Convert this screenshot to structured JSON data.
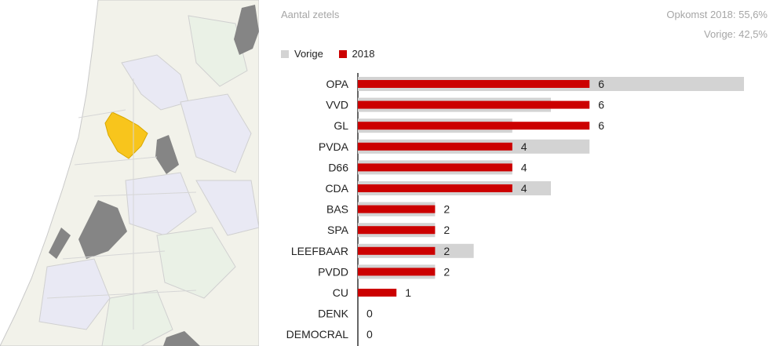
{
  "header": {
    "title": "Aantal zetels",
    "turnout_2018": "Opkomst 2018: 55,6%",
    "turnout_previous": "Vorige: 42,5%"
  },
  "legend": [
    {
      "label": "Vorige",
      "color": "#d3d3d3"
    },
    {
      "label": "2018",
      "color": "#cc0000"
    }
  ],
  "map": {
    "highlight_color": "#f8c51c",
    "neighbour_color": "#858585",
    "municipality_color": "#f2f2ea"
  },
  "chart_data": {
    "type": "bar",
    "orientation": "horizontal",
    "title": "Aantal zetels",
    "categories": [
      "OPA",
      "VVD",
      "GL",
      "PVDA",
      "D66",
      "CDA",
      "BAS",
      "SPA",
      "LEEFBAAR",
      "PVDD",
      "CU",
      "DENK",
      "DEMOCRAL"
    ],
    "series": [
      {
        "name": "Vorige",
        "color": "#d3d3d3",
        "values": [
          10,
          5,
          4,
          6,
          4,
          5,
          2,
          2,
          3,
          2,
          0,
          0,
          0
        ]
      },
      {
        "name": "2018",
        "color": "#cc0000",
        "values": [
          6,
          6,
          6,
          4,
          4,
          4,
          2,
          2,
          2,
          2,
          1,
          0,
          0
        ]
      }
    ],
    "data_labels": [
      "6",
      "6",
      "6",
      "4",
      "4",
      "4",
      "2",
      "2",
      "2",
      "2",
      "1",
      "0",
      "0"
    ],
    "xlim": [
      0,
      10
    ],
    "grid": false,
    "legend_position": "top-left"
  }
}
